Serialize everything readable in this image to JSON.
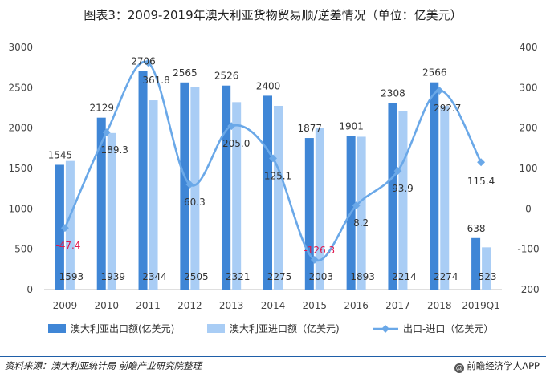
{
  "title": "图表3：2009-2019年澳大利亚货物贸易顺/逆差情况（单位：亿美元）",
  "source": "资料来源：澳大利亚统计局 前瞻产业研究院整理",
  "brand": "前瞻经济学人APP",
  "chart_data": {
    "type": "bar",
    "title": "图表3：2009-2019年澳大利亚货物贸易顺/逆差情况（单位：亿美元）",
    "categories": [
      "2009",
      "2010",
      "2011",
      "2012",
      "2013",
      "2014",
      "2015",
      "2016",
      "2017",
      "2018",
      "2019Q1"
    ],
    "series": [
      {
        "name": "澳大利亚出口额(亿美元)",
        "type": "bar",
        "axis": "left",
        "color": "#3f86d6",
        "values": [
          1545,
          2129,
          2706,
          2565,
          2526,
          2400,
          1877,
          1901,
          2308,
          2566,
          638
        ]
      },
      {
        "name": "澳大利亚进口额（亿美元)",
        "type": "bar",
        "axis": "left",
        "color": "#a9cdf5",
        "values": [
          1593,
          1939,
          2344,
          2505,
          2321,
          2275,
          2003,
          1893,
          2214,
          2274,
          523
        ]
      },
      {
        "name": "出口-进口（亿美元）",
        "type": "line",
        "axis": "right",
        "color": "#6aa8e8",
        "values": [
          -47.4,
          189.3,
          361.8,
          60.3,
          205.0,
          125.1,
          -126.3,
          8.2,
          93.9,
          292.7,
          115.4
        ]
      }
    ],
    "left_axis": {
      "min": 0,
      "max": 3000,
      "ticks": [
        "0",
        "500",
        "1000",
        "1500",
        "2000",
        "2500",
        "3000"
      ]
    },
    "right_axis": {
      "min": -200,
      "max": 400,
      "ticks": [
        "-200",
        "-100",
        "0",
        "100",
        "200",
        "300",
        "400"
      ]
    },
    "line_labels": [
      "-47.4",
      "189.3",
      "361.8",
      "60.3",
      "205.0",
      "125.1",
      "-126.3",
      "8.2",
      "93.9",
      "292.7",
      "115.4"
    ],
    "negative_label_color": "#e0194e",
    "grid": false,
    "legend_position": "bottom"
  }
}
